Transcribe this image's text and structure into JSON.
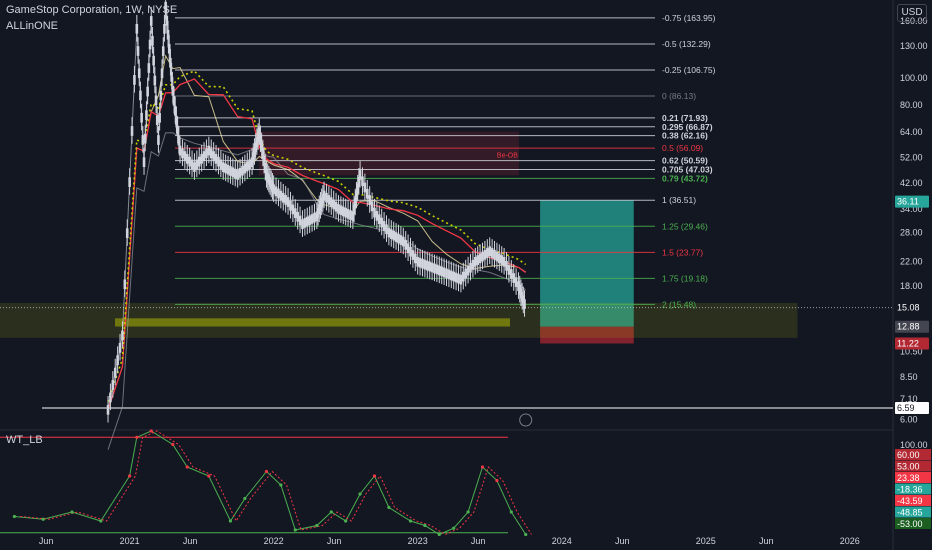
{
  "header": {
    "title": "GameStop Corporation, 1W, NYSE",
    "indicator": "ALLinONE",
    "oscillator": "WT_LB",
    "currency": "USD"
  },
  "colors": {
    "background": "#131722",
    "candle": "#d1d4dc",
    "fib_white": "#d1d4dc",
    "fib_green": "#4caf50",
    "fib_red": "#f23645",
    "teal_zone": "#26a69a",
    "red_zone": "#b22833",
    "yellow_zone": "#c8d000"
  },
  "chart_data": {
    "type": "line",
    "title": "GameStop Corporation, 1W, NYSE",
    "y_scale": "log",
    "xlabel": "",
    "ylabel": "",
    "ylim": [
      5.5,
      190
    ],
    "x_ticks": [
      {
        "label": "Jun",
        "t": 2020.42
      },
      {
        "label": "2021",
        "t": 2021.0
      },
      {
        "label": "Jun",
        "t": 2021.42
      },
      {
        "label": "2022",
        "t": 2022.0
      },
      {
        "label": "Jun",
        "t": 2022.42
      },
      {
        "label": "2023",
        "t": 2023.0
      },
      {
        "label": "Jun",
        "t": 2023.42
      },
      {
        "label": "2024",
        "t": 2024.0
      },
      {
        "label": "Jun",
        "t": 2024.42
      },
      {
        "label": "2025",
        "t": 2025.0
      },
      {
        "label": "Jun",
        "t": 2025.42
      },
      {
        "label": "2026",
        "t": 2026.0
      }
    ],
    "y_ticks": [
      "160.00",
      "130.00",
      "100.00",
      "80.00",
      "64.00",
      "52.00",
      "42.00",
      "34.00",
      "28.00",
      "22.00",
      "18.00",
      "10.50",
      "8.50",
      "7.10",
      "6.00"
    ],
    "y_tick_values": [
      160,
      130,
      100,
      80,
      64,
      52,
      42,
      34,
      28,
      22,
      18,
      10.5,
      8.5,
      7.1,
      6.0
    ],
    "fib_levels": [
      {
        "label": "-0.75 (163.95)",
        "value": 163.95,
        "color": "white",
        "bold": false
      },
      {
        "label": "-0.5 (132.29)",
        "value": 132.29,
        "color": "white",
        "bold": false
      },
      {
        "label": "-0.25 (106.75)",
        "value": 106.75,
        "color": "white",
        "bold": false
      },
      {
        "label": "0 (86.13)",
        "value": 86.13,
        "color": "grey",
        "bold": false
      },
      {
        "label": "0.21 (71.93)",
        "value": 71.93,
        "color": "white",
        "bold": true
      },
      {
        "label": "0.295 (66.87)",
        "value": 66.87,
        "color": "white",
        "bold": true
      },
      {
        "label": "0.38 (62.16)",
        "value": 62.16,
        "color": "white",
        "bold": true
      },
      {
        "label": "0.5 (56.09)",
        "value": 56.09,
        "color": "red",
        "bold": false
      },
      {
        "label": "0.62 (50.59)",
        "value": 50.59,
        "color": "white",
        "bold": true
      },
      {
        "label": "0.705 (47.03)",
        "value": 47.03,
        "color": "white",
        "bold": true
      },
      {
        "label": "0.79 (43.72)",
        "value": 43.72,
        "color": "green",
        "bold": true
      },
      {
        "label": "1 (36.51)",
        "value": 36.51,
        "color": "white",
        "bold": false
      },
      {
        "label": "1.25 (29.46)",
        "value": 29.46,
        "color": "green",
        "bold": false
      },
      {
        "label": "1.5 (23.77)",
        "value": 23.77,
        "color": "red",
        "bold": false
      },
      {
        "label": "1.75 (19.18)",
        "value": 19.18,
        "color": "green",
        "bold": false
      },
      {
        "label": "2 (15.48)",
        "value": 15.48,
        "color": "green",
        "bold": false
      }
    ],
    "zone_label": "Be-OB",
    "price_badges": [
      {
        "label": "36.11",
        "value": 36.11,
        "bg": "#26a69a"
      },
      {
        "label": "15.08",
        "value": 15.08,
        "bg": "#131722"
      },
      {
        "label": "12.88",
        "value": 12.88,
        "bg": "#434651"
      },
      {
        "label": "11.22",
        "value": 11.22,
        "bg": "#b22833"
      },
      {
        "label": "6.59",
        "value": 6.59,
        "bg": "#ffffff"
      }
    ],
    "series": [
      {
        "name": "close",
        "color": "#d1d4dc",
        "points": [
          [
            2020.85,
            6.5
          ],
          [
            2020.95,
            12
          ],
          [
            2021.05,
            150
          ],
          [
            2021.1,
            50
          ],
          [
            2021.15,
            160
          ],
          [
            2021.2,
            60
          ],
          [
            2021.25,
            180
          ],
          [
            2021.3,
            90
          ],
          [
            2021.35,
            55
          ],
          [
            2021.45,
            48
          ],
          [
            2021.55,
            55
          ],
          [
            2021.65,
            48
          ],
          [
            2021.75,
            45
          ],
          [
            2021.85,
            50
          ],
          [
            2021.9,
            64
          ],
          [
            2021.95,
            45
          ],
          [
            2022.0,
            40
          ],
          [
            2022.1,
            36
          ],
          [
            2022.2,
            30
          ],
          [
            2022.3,
            32
          ],
          [
            2022.35,
            38
          ],
          [
            2022.45,
            34
          ],
          [
            2022.55,
            32
          ],
          [
            2022.6,
            45
          ],
          [
            2022.7,
            33
          ],
          [
            2022.8,
            28
          ],
          [
            2022.9,
            26
          ],
          [
            2023.0,
            22
          ],
          [
            2023.1,
            21
          ],
          [
            2023.2,
            20
          ],
          [
            2023.3,
            19
          ],
          [
            2023.4,
            22
          ],
          [
            2023.5,
            24
          ],
          [
            2023.6,
            22
          ],
          [
            2023.7,
            18
          ],
          [
            2023.75,
            15.08
          ]
        ]
      }
    ],
    "oscillator": {
      "name": "WT_LB",
      "y_ticks": [
        "100.00"
      ],
      "badges": [
        {
          "label": "60.00",
          "bg": "#b22833"
        },
        {
          "label": "53.00",
          "bg": "#b22833"
        },
        {
          "label": "23.38",
          "bg": "#f23645"
        },
        {
          "label": "-18.36",
          "bg": "#26a69a"
        },
        {
          "label": "-43.59",
          "bg": "#f23645"
        },
        {
          "label": "-48.85",
          "bg": "#26a69a"
        },
        {
          "label": "-53.00",
          "bg": "#1b5e20"
        }
      ],
      "wt1": [
        [
          2020.2,
          -35
        ],
        [
          2020.4,
          -38
        ],
        [
          2020.6,
          -30
        ],
        [
          2020.8,
          -40
        ],
        [
          2021.0,
          10
        ],
        [
          2021.05,
          53
        ],
        [
          2021.15,
          60
        ],
        [
          2021.3,
          45
        ],
        [
          2021.4,
          20
        ],
        [
          2021.55,
          10
        ],
        [
          2021.7,
          -40
        ],
        [
          2021.8,
          -15
        ],
        [
          2021.95,
          15
        ],
        [
          2022.05,
          0
        ],
        [
          2022.15,
          -50
        ],
        [
          2022.3,
          -45
        ],
        [
          2022.4,
          -30
        ],
        [
          2022.5,
          -40
        ],
        [
          2022.6,
          -10
        ],
        [
          2022.7,
          10
        ],
        [
          2022.8,
          -25
        ],
        [
          2022.95,
          -40
        ],
        [
          2023.05,
          -45
        ],
        [
          2023.15,
          -55
        ],
        [
          2023.25,
          -48
        ],
        [
          2023.35,
          -30
        ],
        [
          2023.45,
          20
        ],
        [
          2023.55,
          5
        ],
        [
          2023.65,
          -30
        ],
        [
          2023.75,
          -55
        ]
      ]
    }
  }
}
